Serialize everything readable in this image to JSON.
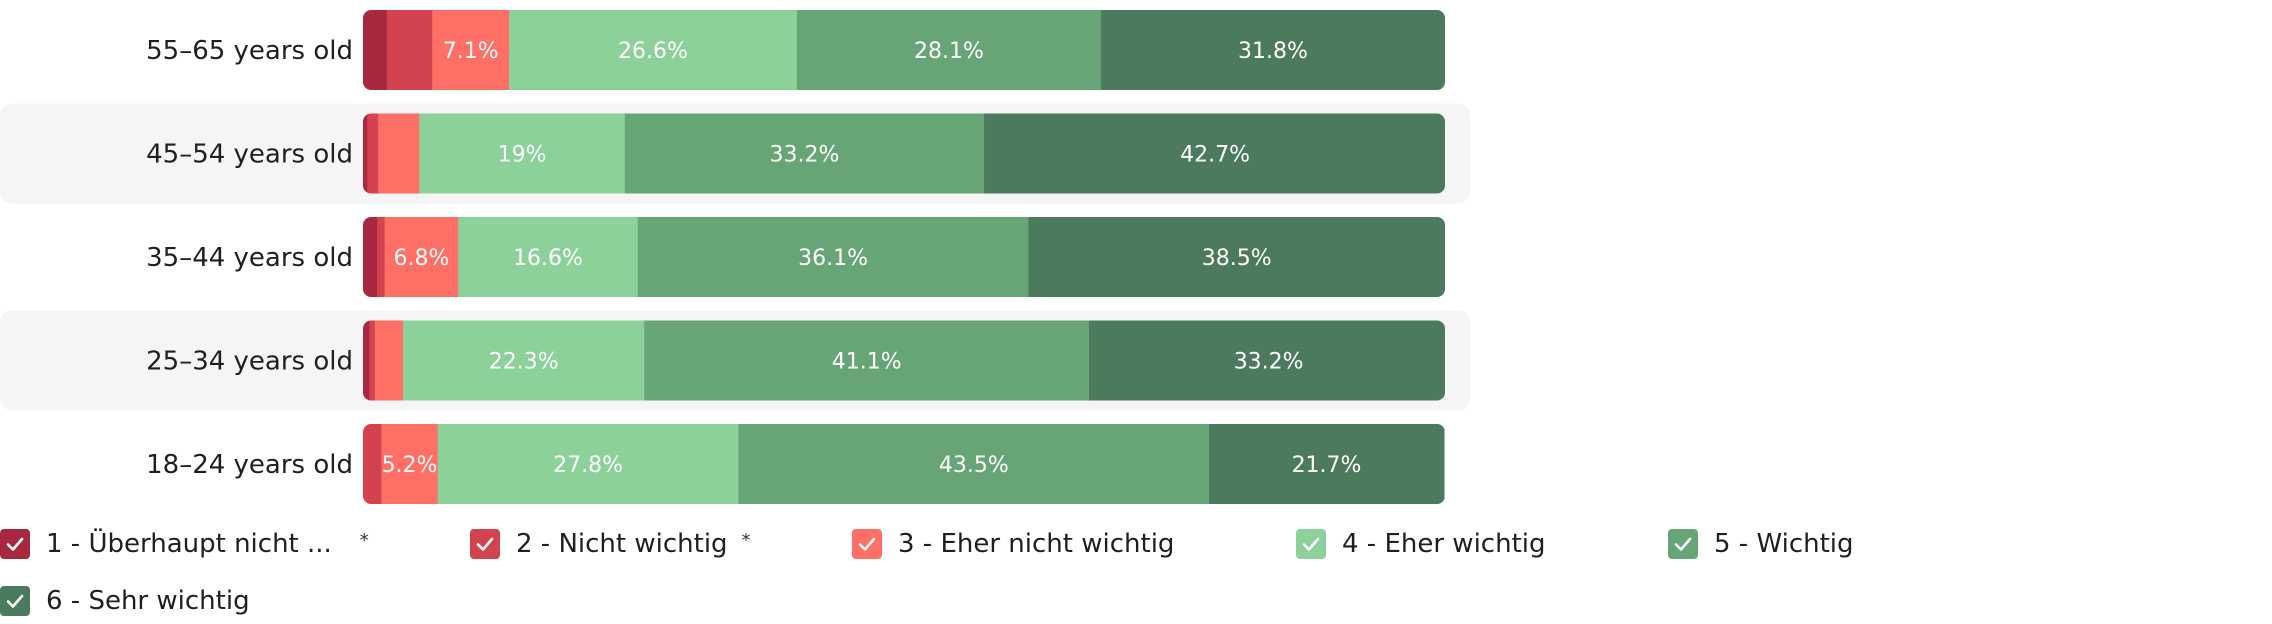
{
  "chart_data": {
    "type": "bar",
    "orientation": "horizontal",
    "stacked": true,
    "normalized": true,
    "categories": [
      "55–65 years old",
      "45–54 years old",
      "35–44 years old",
      "25–34 years old",
      "18–24 years old"
    ],
    "series": [
      {
        "name": "1 - Überhaupt nicht ...",
        "color": "#a8293f",
        "values": [
          2.2,
          0.4,
          1.3,
          0.6,
          0.0
        ],
        "labels": [
          "",
          "",
          "",
          "",
          ""
        ]
      },
      {
        "name": "2 - Nicht wichtig",
        "color": "#d2434f",
        "values": [
          4.2,
          1.0,
          0.7,
          0.5,
          1.7
        ],
        "labels": [
          "",
          "",
          "",
          "",
          ""
        ]
      },
      {
        "name": "3 - Eher nicht wichtig",
        "color": "#ff6f66",
        "values": [
          7.1,
          3.8,
          6.8,
          2.6,
          5.2
        ],
        "labels": [
          "7.1%",
          "",
          "6.8%",
          "",
          "5.2%"
        ]
      },
      {
        "name": "4 - Eher wichtig",
        "color": "#8bd199",
        "values": [
          26.6,
          19.0,
          16.6,
          22.3,
          27.8
        ],
        "labels": [
          "26.6%",
          "19%",
          "16.6%",
          "22.3%",
          "27.8%"
        ]
      },
      {
        "name": "5 - Wichtig",
        "color": "#67a577",
        "values": [
          28.1,
          33.2,
          36.1,
          41.1,
          43.5
        ],
        "labels": [
          "28.1%",
          "33.2%",
          "36.1%",
          "41.1%",
          "43.5%"
        ]
      },
      {
        "name": "6 - Sehr wichtig",
        "color": "#4b7a5c",
        "values": [
          31.8,
          42.7,
          38.5,
          33.2,
          21.7
        ],
        "labels": [
          "31.8%",
          "42.7%",
          "38.5%",
          "33.2%",
          "21.7%"
        ]
      }
    ],
    "xlim": [
      0,
      100
    ],
    "grid": false,
    "legend_position": "bottom"
  },
  "legend": {
    "items": [
      {
        "label": "1 - Überhaupt nicht ...",
        "color": "#a8293f",
        "checked": true,
        "marker": "*"
      },
      {
        "label": "2 - Nicht wichtig",
        "color": "#d2434f",
        "checked": true,
        "marker": "*"
      },
      {
        "label": "3 - Eher nicht wichtig",
        "color": "#ff6f66",
        "checked": true,
        "marker": ""
      },
      {
        "label": "4 - Eher wichtig",
        "color": "#8bd199",
        "checked": true,
        "marker": ""
      },
      {
        "label": "5 - Wichtig",
        "color": "#67a577",
        "checked": true,
        "marker": ""
      },
      {
        "label": "6 - Sehr wichtig",
        "color": "#4b7a5c",
        "checked": true,
        "marker": ""
      }
    ]
  }
}
